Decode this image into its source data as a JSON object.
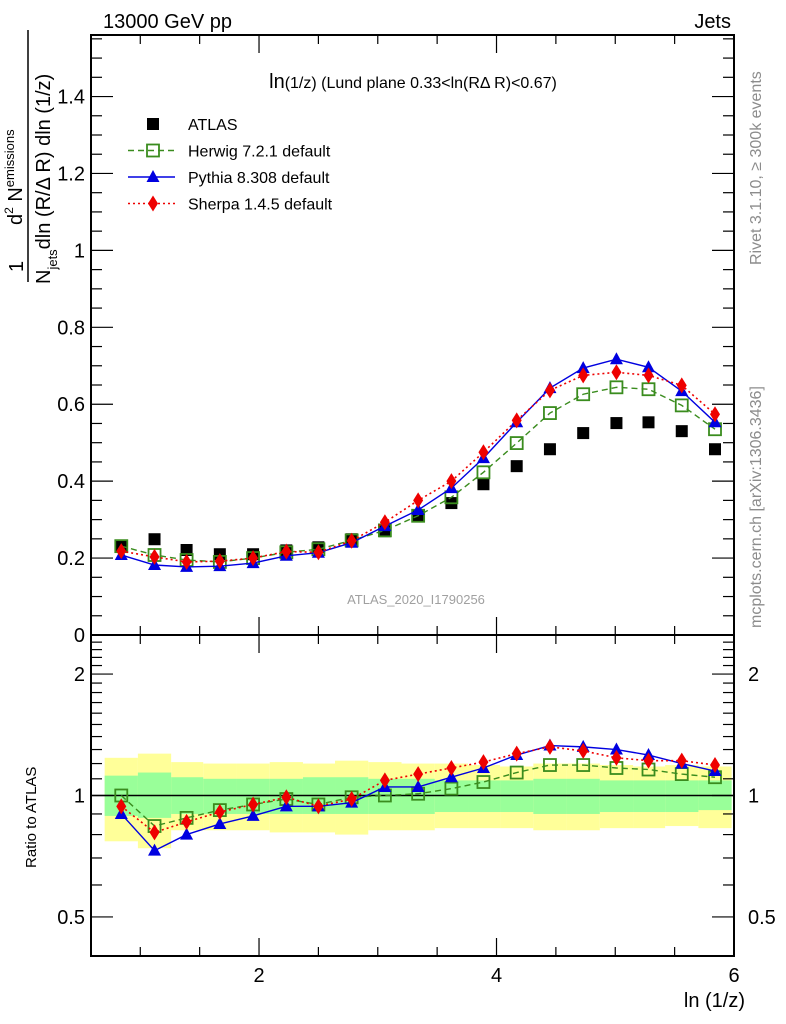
{
  "header": {
    "left_label": "13000 GeV pp",
    "right_label": "Jets"
  },
  "side_labels": {
    "rivet": "Rivet 3.1.10, ≥ 300k events",
    "mcplots": "mcplots.cern.ch [arXiv:1306.3436]"
  },
  "watermark": "ATLAS_2020_I1790256",
  "chart_data": [
    {
      "type": "scatter",
      "panel": "main",
      "title": "ln(1/z) (Lund plane 0.33<ln(RΔ R)<0.67)",
      "title_parts": {
        "prefix": "ln",
        "rest": "(1/z) (Lund plane 0.33<ln(RΔ R)<0.67)"
      },
      "xlabel": "ln (1/z)",
      "ylabel": {
        "numerator": "1",
        "d2": "d",
        "sup2": "2",
        "N": " N",
        "sub_emissions": "emissions",
        "denominator_N": "N",
        "sub_jets": "jets",
        "denominator_rest": "dln (R/Δ R) dln (1/z)"
      },
      "xlim": [
        0.585,
        6.0
      ],
      "ylim": [
        0,
        1.56
      ],
      "yticks": [
        0,
        0.2,
        0.4,
        0.6,
        0.8,
        1,
        1.2,
        1.4
      ],
      "ytick_labels": [
        "0",
        "0.2",
        "0.4",
        "0.6",
        "0.8",
        "1",
        "1.2",
        "1.4"
      ],
      "xticks": [
        2,
        4,
        6
      ],
      "xtick_labels": [
        "2",
        "4",
        "6"
      ],
      "legend_position": "top-left",
      "x": [
        0.84,
        1.12,
        1.39,
        1.67,
        1.95,
        2.23,
        2.5,
        2.78,
        3.06,
        3.34,
        3.62,
        3.89,
        4.17,
        4.45,
        4.73,
        5.01,
        5.28,
        5.56,
        5.84
      ],
      "series": [
        {
          "name": "ATLAS",
          "color": "#000000",
          "marker": "filled-square",
          "line": "none",
          "values": [
            0.231,
            0.249,
            0.221,
            0.21,
            0.21,
            0.22,
            0.228,
            0.249,
            0.27,
            0.31,
            0.343,
            0.392,
            0.439,
            0.483,
            0.525,
            0.551,
            0.553,
            0.53,
            0.483
          ]
        },
        {
          "name": "Herwig 7.2.1 default",
          "color": "#3a8c1e",
          "marker": "open-square",
          "line": "dashed",
          "values": [
            0.231,
            0.208,
            0.195,
            0.19,
            0.2,
            0.215,
            0.223,
            0.246,
            0.272,
            0.31,
            0.358,
            0.423,
            0.499,
            0.577,
            0.626,
            0.644,
            0.639,
            0.597,
            0.535
          ]
        },
        {
          "name": "Pythia 8.308 default",
          "color": "#0000e0",
          "marker": "filled-triangle",
          "line": "solid",
          "values": [
            0.208,
            0.182,
            0.177,
            0.179,
            0.187,
            0.206,
            0.214,
            0.24,
            0.283,
            0.325,
            0.382,
            0.46,
            0.553,
            0.642,
            0.694,
            0.717,
            0.696,
            0.634,
            0.553
          ]
        },
        {
          "name": "Sherpa 1.4.5 default",
          "color": "#ee0000",
          "marker": "filled-diamond",
          "line": "dotted",
          "values": [
            0.218,
            0.203,
            0.19,
            0.192,
            0.2,
            0.217,
            0.215,
            0.245,
            0.293,
            0.35,
            0.4,
            0.475,
            0.558,
            0.636,
            0.675,
            0.683,
            0.675,
            0.649,
            0.574
          ]
        }
      ]
    },
    {
      "type": "scatter",
      "panel": "ratio",
      "ylabel": "Ratio to ATLAS",
      "xlabel": "ln (1/z)",
      "yscale": "log",
      "xlim": [
        0.585,
        6.0
      ],
      "ylim": [
        0.4,
        2.5
      ],
      "yticks": [
        0.5,
        1,
        2
      ],
      "ytick_labels": [
        "0.5",
        "1",
        "2"
      ],
      "xticks": [
        2,
        4,
        6
      ],
      "xtick_labels": [
        "2",
        "4",
        "6"
      ],
      "bin_edges": [
        0.7,
        0.98,
        1.26,
        1.53,
        1.81,
        2.09,
        2.37,
        2.64,
        2.92,
        3.2,
        3.48,
        3.76,
        4.03,
        4.31,
        4.59,
        4.87,
        5.15,
        5.42,
        5.7,
        5.98
      ],
      "band_yellow": {
        "color": "#ffff99",
        "upper": [
          1.24,
          1.27,
          1.21,
          1.2,
          1.2,
          1.21,
          1.2,
          1.22,
          1.21,
          1.2,
          1.2,
          1.19,
          1.18,
          1.2,
          1.2,
          1.19,
          1.18,
          1.19,
          1.18
        ],
        "lower": [
          0.77,
          0.74,
          0.82,
          0.82,
          0.82,
          0.81,
          0.81,
          0.8,
          0.82,
          0.82,
          0.83,
          0.83,
          0.83,
          0.82,
          0.82,
          0.83,
          0.83,
          0.84,
          0.83
        ]
      },
      "band_green": {
        "color": "#99ff99",
        "upper": [
          1.12,
          1.14,
          1.11,
          1.1,
          1.1,
          1.1,
          1.11,
          1.11,
          1.1,
          1.1,
          1.09,
          1.09,
          1.09,
          1.1,
          1.1,
          1.09,
          1.09,
          1.09,
          1.09
        ],
        "lower": [
          0.89,
          0.88,
          0.9,
          0.9,
          0.9,
          0.9,
          0.9,
          0.9,
          0.9,
          0.9,
          0.91,
          0.91,
          0.91,
          0.9,
          0.9,
          0.91,
          0.91,
          0.91,
          0.92
        ]
      },
      "reference_line": 1,
      "x": [
        0.84,
        1.12,
        1.39,
        1.67,
        1.95,
        2.23,
        2.5,
        2.78,
        3.06,
        3.34,
        3.62,
        3.89,
        4.17,
        4.45,
        4.73,
        5.01,
        5.28,
        5.56,
        5.84
      ],
      "series": [
        {
          "name": "Herwig 7.2.1 default",
          "color": "#3a8c1e",
          "marker": "open-square",
          "line": "dashed",
          "values": [
            1.0,
            0.84,
            0.88,
            0.92,
            0.95,
            0.98,
            0.95,
            0.99,
            1.0,
            1.01,
            1.04,
            1.08,
            1.14,
            1.19,
            1.19,
            1.17,
            1.16,
            1.13,
            1.11
          ]
        },
        {
          "name": "Pythia 8.308 default",
          "color": "#0000e0",
          "marker": "filled-triangle",
          "line": "solid",
          "values": [
            0.9,
            0.73,
            0.8,
            0.85,
            0.89,
            0.94,
            0.94,
            0.96,
            1.05,
            1.05,
            1.11,
            1.17,
            1.26,
            1.33,
            1.32,
            1.3,
            1.26,
            1.2,
            1.15
          ]
        },
        {
          "name": "Sherpa 1.4.5 default",
          "color": "#ee0000",
          "marker": "filled-diamond",
          "line": "dotted",
          "values": [
            0.94,
            0.81,
            0.86,
            0.91,
            0.95,
            0.99,
            0.94,
            0.98,
            1.09,
            1.13,
            1.17,
            1.21,
            1.27,
            1.32,
            1.29,
            1.24,
            1.22,
            1.22,
            1.19
          ]
        }
      ]
    }
  ]
}
